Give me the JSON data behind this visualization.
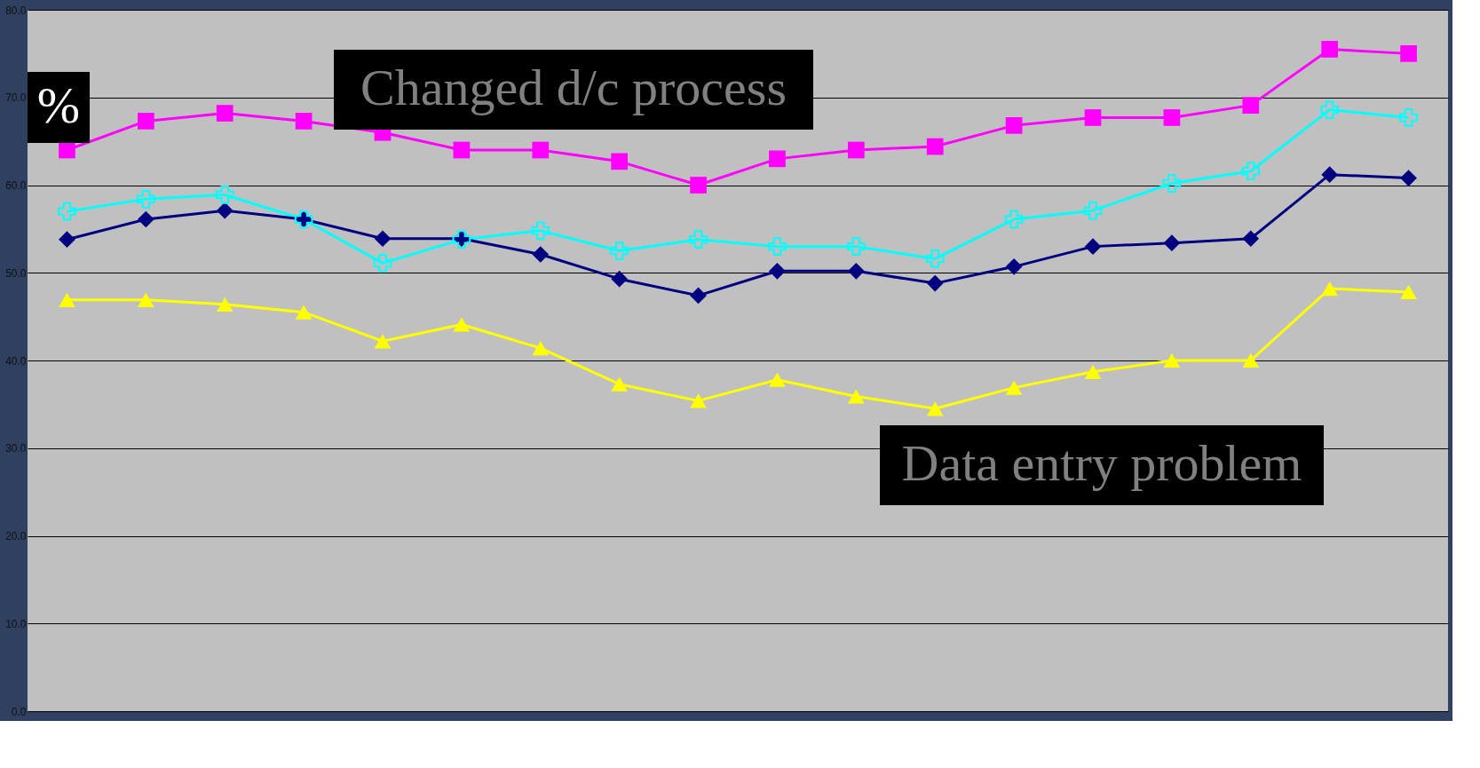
{
  "chart_data": {
    "type": "line",
    "ylabel": "%",
    "categories": [
      null,
      null,
      null,
      null,
      null,
      null,
      null,
      null,
      null,
      null,
      null,
      null,
      null,
      null,
      null,
      null,
      null,
      null
    ],
    "series": [
      {
        "color": "#ff00ff",
        "marker": "square",
        "values": [
          64,
          67.3,
          68.2,
          67.3,
          66,
          64,
          64,
          62.7,
          60,
          63,
          64,
          64.4,
          66.8,
          67.7,
          67.7,
          69.1,
          75.5,
          75
        ]
      },
      {
        "color": "#00ffff",
        "marker": "cross",
        "values": [
          57,
          58.4,
          58.9,
          56.1,
          51.1,
          53.8,
          54.8,
          52.5,
          53.8,
          53,
          53,
          51.6,
          56.1,
          57.1,
          60.2,
          61.6,
          68.6,
          67.7
        ]
      },
      {
        "color": "#000080",
        "marker": "diamond",
        "values": [
          53.8,
          56.1,
          57.1,
          56.1,
          53.9,
          53.9,
          52.1,
          49.3,
          47.4,
          50.2,
          50.2,
          48.8,
          50.7,
          53,
          53.4,
          53.9,
          61.2,
          60.8
        ]
      },
      {
        "color": "#ffff00",
        "marker": "triangle",
        "values": [
          46.9,
          46.9,
          46.4,
          45.5,
          42.2,
          44.1,
          41.4,
          37.3,
          35.4,
          37.8,
          35.9,
          34.5,
          36.9,
          38.7,
          40,
          40,
          48.2,
          47.8
        ]
      }
    ],
    "ylim": [
      0,
      80
    ],
    "yticks": [
      {
        "value": 0,
        "label": "0.0"
      },
      {
        "value": 10,
        "label": "10.0"
      },
      {
        "value": 20,
        "label": "20.0"
      },
      {
        "value": 30,
        "label": "30.0"
      },
      {
        "value": 40,
        "label": "40.0"
      },
      {
        "value": 50,
        "label": "50.0"
      },
      {
        "value": 60,
        "label": "60.0"
      },
      {
        "value": 70,
        "label": "70.0"
      },
      {
        "value": 80,
        "label": "80.0"
      }
    ],
    "grid": "y",
    "line_style": "solid",
    "annotations": [
      "Changed d/c process",
      "Data entry problem"
    ]
  }
}
